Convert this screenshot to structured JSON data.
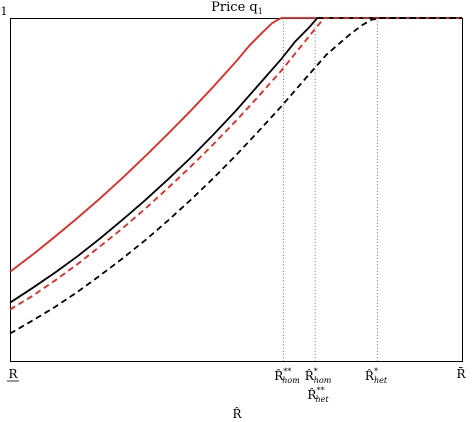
{
  "chart_data": {
    "type": "line",
    "title": "Price q",
    "title_sub": "1",
    "xlabel": "R̂",
    "ylabel": "",
    "xlim": [
      0,
      1
    ],
    "ylim": [
      0,
      1
    ],
    "y_ticks": [
      {
        "value": 1,
        "label": "1"
      }
    ],
    "x_end_ticks": {
      "left": "R",
      "right": "R̄"
    },
    "grid": false,
    "legend": "none",
    "markers": [
      {
        "key": "r_hom_2star",
        "x": 0.605,
        "base": "R̂",
        "sup": "**",
        "sub": "hom"
      },
      {
        "key": "r_hom_1star",
        "x": 0.675,
        "base": "R̂",
        "sup": "*",
        "sub": "hom"
      },
      {
        "key": "r_het_2star",
        "x": 0.675,
        "base": "R̂",
        "sup": "**",
        "sub": "het"
      },
      {
        "key": "r_het_1star",
        "x": 0.813,
        "base": "R̂",
        "sup": "*",
        "sub": "het"
      }
    ],
    "series": [
      {
        "color": "#e8231c",
        "dash": "solid",
        "x": [
          0,
          0.05,
          0.1,
          0.15,
          0.2,
          0.25,
          0.3,
          0.35,
          0.4,
          0.45,
          0.5,
          0.53,
          0.56,
          0.58,
          0.6,
          1
        ],
        "y": [
          0.26,
          0.31,
          0.363,
          0.418,
          0.475,
          0.535,
          0.598,
          0.663,
          0.73,
          0.8,
          0.873,
          0.92,
          0.96,
          0.985,
          1.0,
          1.0
        ]
      },
      {
        "color": "#000000",
        "dash": "solid",
        "x": [
          0,
          0.05,
          0.1,
          0.15,
          0.2,
          0.25,
          0.3,
          0.35,
          0.4,
          0.45,
          0.5,
          0.55,
          0.6,
          0.63,
          0.66,
          0.68,
          1
        ],
        "y": [
          0.17,
          0.213,
          0.258,
          0.306,
          0.358,
          0.413,
          0.47,
          0.53,
          0.593,
          0.66,
          0.73,
          0.805,
          0.88,
          0.93,
          0.97,
          1.0,
          1.0
        ]
      },
      {
        "color": "#e8231c",
        "dash": "dashed",
        "x": [
          0,
          0.05,
          0.1,
          0.15,
          0.2,
          0.25,
          0.3,
          0.35,
          0.4,
          0.45,
          0.5,
          0.55,
          0.6,
          0.63,
          0.67,
          0.695,
          1
        ],
        "y": [
          0.15,
          0.19,
          0.235,
          0.283,
          0.335,
          0.388,
          0.445,
          0.505,
          0.567,
          0.632,
          0.7,
          0.772,
          0.846,
          0.895,
          0.96,
          1.0,
          1.0
        ]
      },
      {
        "color": "#000000",
        "dash": "dashed",
        "x": [
          0,
          0.05,
          0.1,
          0.15,
          0.2,
          0.25,
          0.3,
          0.35,
          0.4,
          0.45,
          0.5,
          0.55,
          0.6,
          0.65,
          0.7,
          0.75,
          0.78,
          0.8,
          0.82,
          1
        ],
        "y": [
          0.08,
          0.118,
          0.158,
          0.202,
          0.25,
          0.3,
          0.353,
          0.41,
          0.47,
          0.533,
          0.6,
          0.67,
          0.742,
          0.818,
          0.893,
          0.95,
          0.98,
          0.995,
          1.0,
          1.0
        ]
      }
    ]
  }
}
